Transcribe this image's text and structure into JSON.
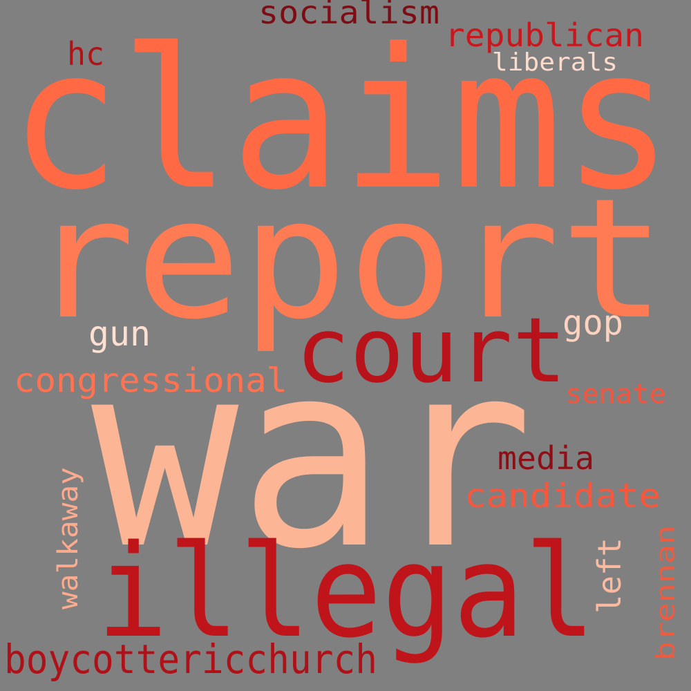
{
  "background": "#808080",
  "words": [
    {
      "id": "claims",
      "text": "claims",
      "color": "#ff6a45"
    },
    {
      "id": "report",
      "text": "report",
      "color": "#ff7b54"
    },
    {
      "id": "war",
      "text": "war",
      "color": "#fcb595"
    },
    {
      "id": "illegal",
      "text": "illegal",
      "color": "#c0141b"
    },
    {
      "id": "court",
      "text": "court",
      "color": "#b8131a"
    },
    {
      "id": "socialism",
      "text": "socialism",
      "color": "#7d0c14"
    },
    {
      "id": "republican",
      "text": "republican",
      "color": "#c8171d"
    },
    {
      "id": "hc",
      "text": "hc",
      "color": "#b01218"
    },
    {
      "id": "liberals",
      "text": "liberals",
      "color": "#fddccd"
    },
    {
      "id": "gun",
      "text": "gun",
      "color": "#fde0d2"
    },
    {
      "id": "gop",
      "text": "gop",
      "color": "#fdd3c0"
    },
    {
      "id": "congressional",
      "text": "congressional",
      "color": "#ff7352"
    },
    {
      "id": "senate",
      "text": "senate",
      "color": "#f3553e"
    },
    {
      "id": "media",
      "text": "media",
      "color": "#8e0e16"
    },
    {
      "id": "candidate",
      "text": "candidate",
      "color": "#f6573d"
    },
    {
      "id": "walkaway",
      "text": "walkaway",
      "color": "#fcab8e"
    },
    {
      "id": "left",
      "text": "left",
      "color": "#fcbba1"
    },
    {
      "id": "brennan",
      "text": "brennan",
      "color": "#f05a3f"
    },
    {
      "id": "boycottericchurch",
      "text": "boycottericchurch",
      "color": "#ae1117"
    }
  ]
}
